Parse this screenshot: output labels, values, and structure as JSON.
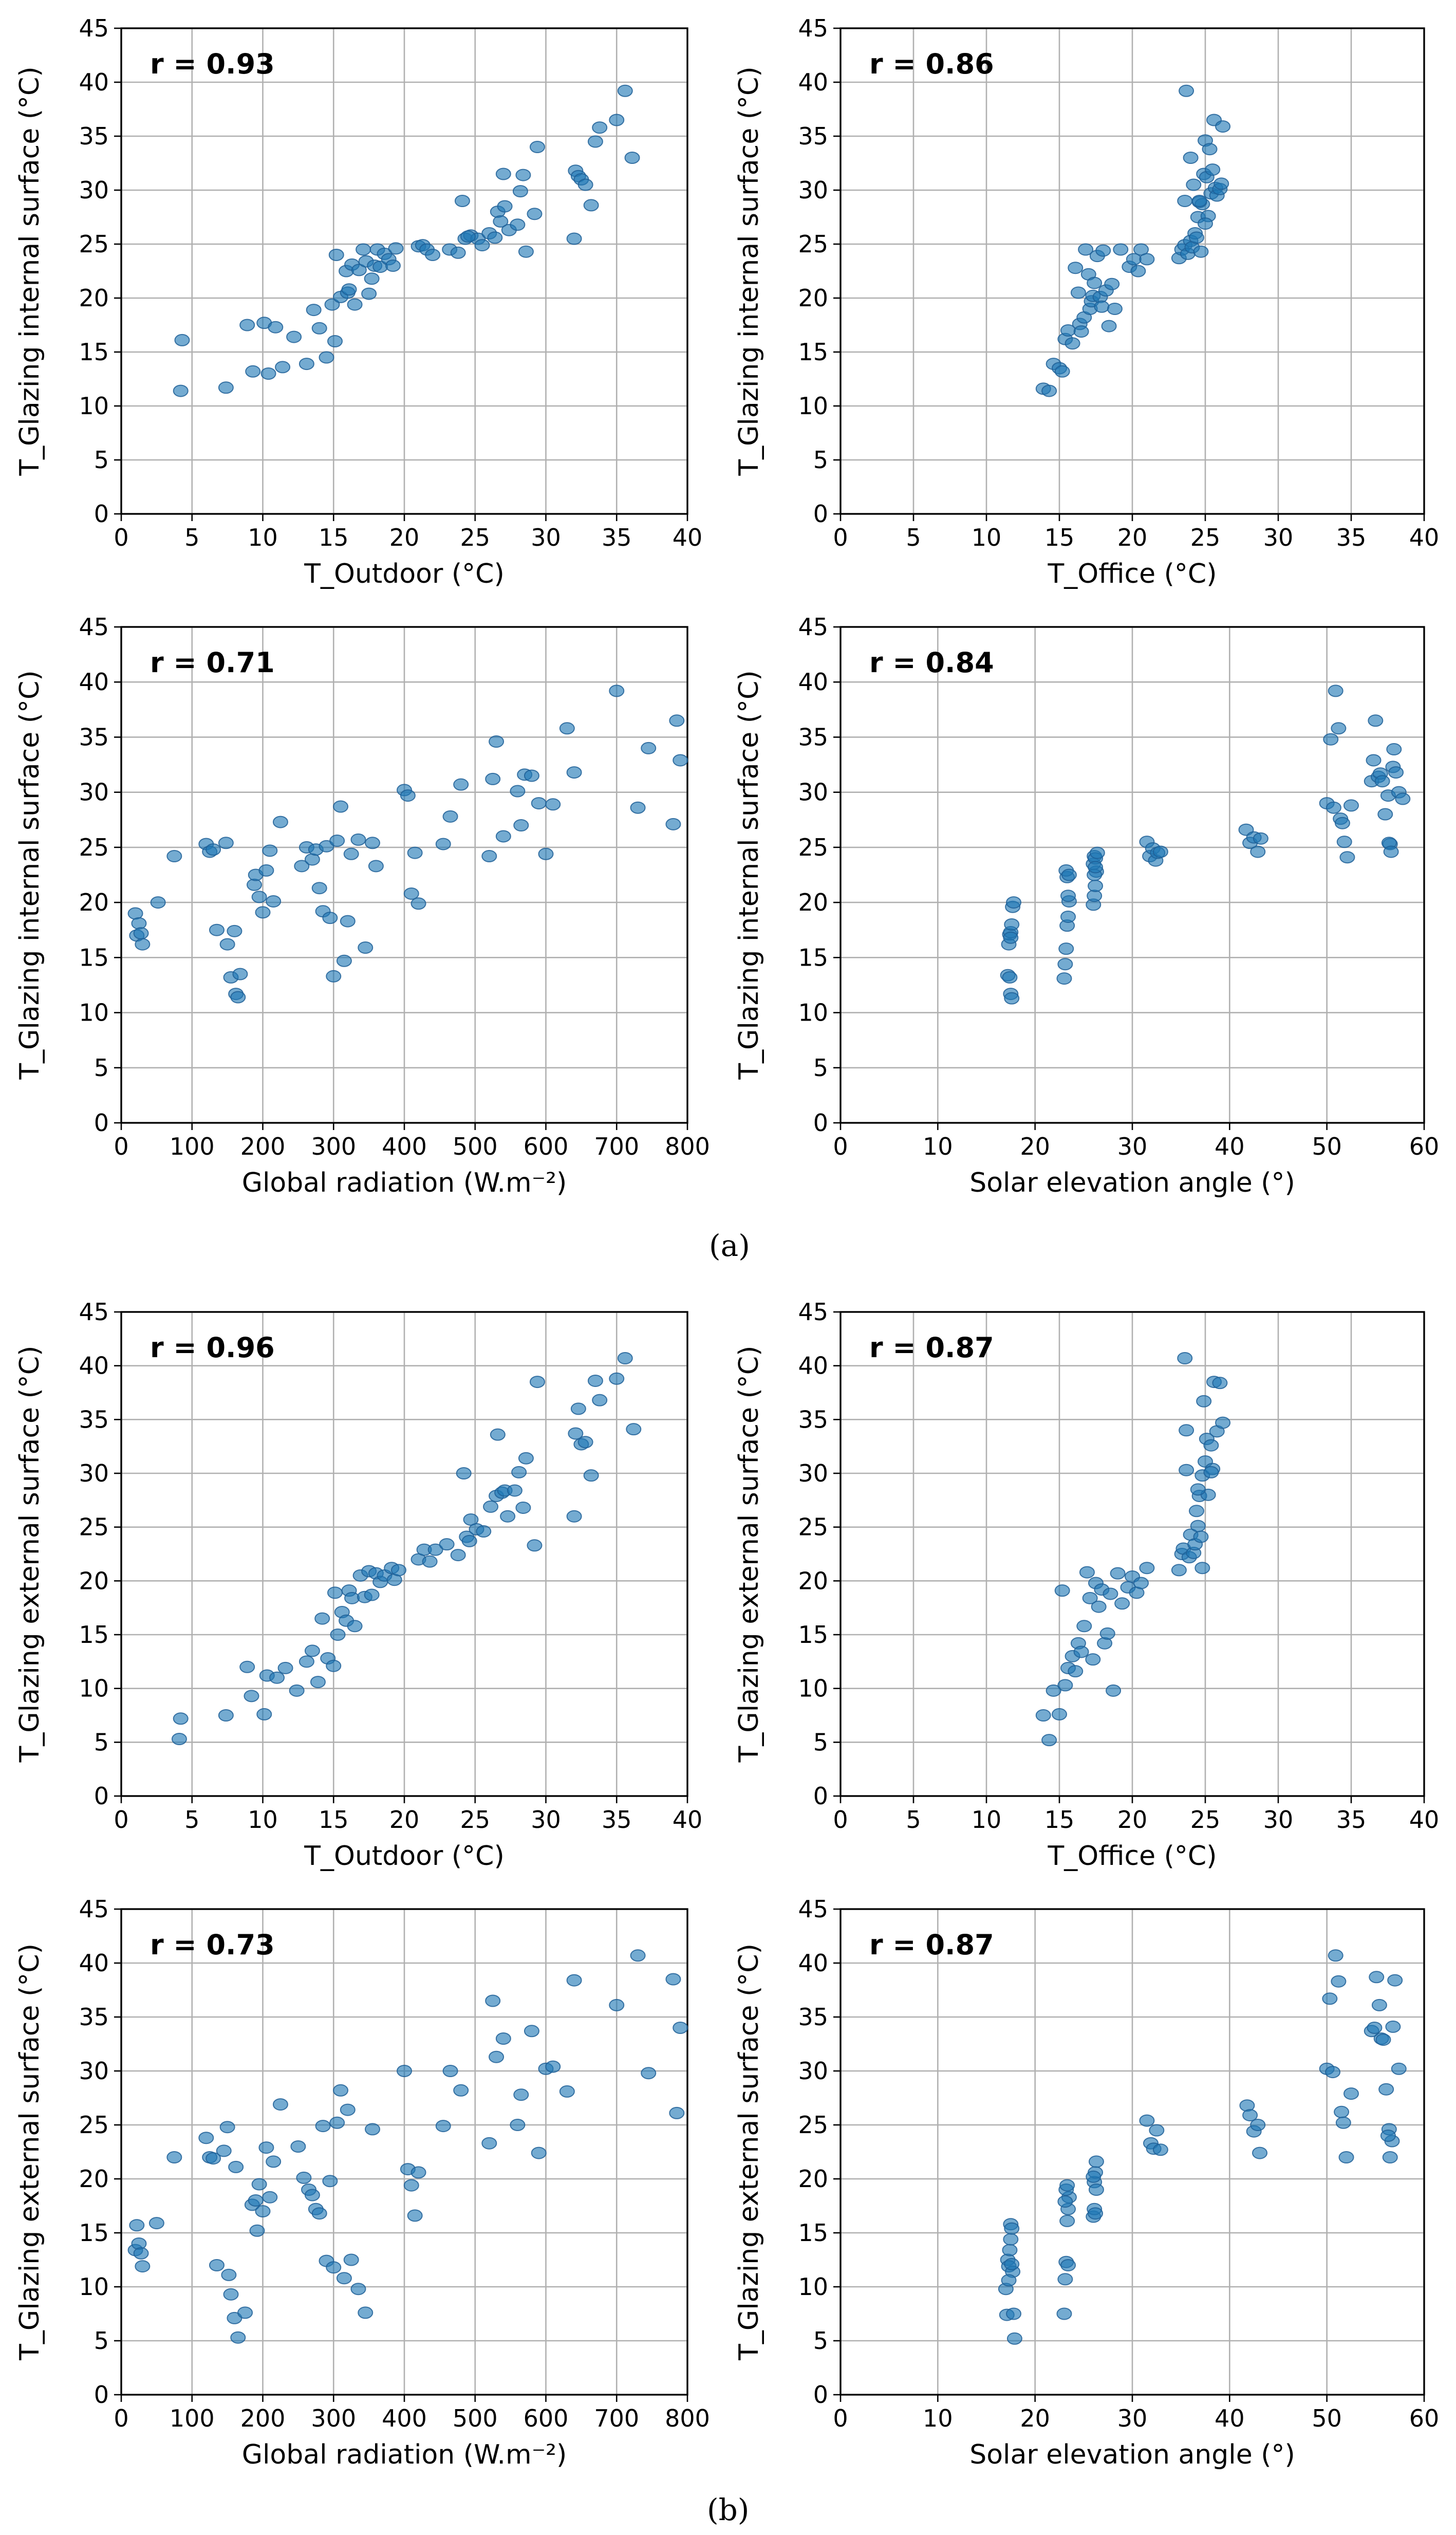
{
  "figure": {
    "panel_labels": [
      "(a)",
      "(b)"
    ]
  },
  "colors": {
    "point": "#1f77b4",
    "grid": "#b0b0b0"
  },
  "chart_data": [
    {
      "type": "scatter",
      "panel": "a",
      "title": "r = 0.93",
      "xlabel": "T_Outdoor (°C)",
      "ylabel": "T_Glazing internal surface (°C)",
      "xlim": [
        0,
        40
      ],
      "ylim": [
        0,
        45
      ],
      "xticks": [
        0,
        5,
        10,
        15,
        20,
        25,
        30,
        35,
        40
      ],
      "yticks": [
        0,
        5,
        10,
        15,
        20,
        25,
        30,
        35,
        40,
        45
      ],
      "x": [
        4.3,
        4.2,
        7.4,
        8.9,
        9.3,
        10.1,
        10.4,
        10.9,
        11.4,
        12.2,
        13.1,
        13.6,
        14.0,
        14.5,
        14.9,
        15.1,
        15.2,
        15.5,
        15.9,
        16.0,
        16.1,
        16.3,
        16.5,
        16.8,
        17.1,
        17.3,
        17.5,
        17.7,
        17.9,
        18.1,
        18.3,
        18.6,
        18.9,
        19.2,
        19.4,
        21.0,
        21.3,
        21.6,
        22.0,
        23.2,
        23.8,
        24.1,
        24.3,
        24.7,
        25.2,
        25.5,
        24.5,
        26.0,
        26.4,
        26.6,
        26.8,
        27.0,
        27.1,
        27.4,
        28.0,
        28.2,
        28.4,
        28.6,
        29.2,
        29.4,
        32.1,
        32.3,
        32.5,
        32.0,
        32.8,
        33.2,
        33.5,
        33.8,
        35.0,
        35.6,
        36.1
      ],
      "y": [
        16.1,
        11.4,
        11.7,
        17.5,
        13.2,
        17.7,
        13.0,
        17.3,
        13.6,
        16.4,
        13.9,
        18.9,
        17.2,
        14.5,
        19.4,
        16.0,
        24.0,
        20.1,
        22.5,
        20.5,
        20.8,
        23.1,
        19.4,
        22.6,
        24.5,
        23.4,
        20.4,
        21.8,
        23.0,
        24.5,
        22.9,
        24.1,
        23.6,
        23.0,
        24.6,
        24.8,
        24.9,
        24.5,
        24.0,
        24.5,
        24.2,
        29.0,
        25.5,
        25.8,
        25.5,
        24.9,
        25.7,
        26.0,
        25.6,
        28.0,
        27.1,
        31.5,
        28.5,
        26.3,
        26.8,
        29.9,
        31.4,
        24.3,
        27.8,
        34.0,
        31.8,
        31.3,
        31.0,
        25.5,
        30.5,
        28.6,
        34.5,
        35.8,
        36.5,
        39.2,
        33.0
      ]
    },
    {
      "type": "scatter",
      "panel": "a",
      "title": "r = 0.86",
      "xlabel": "T_Office (°C)",
      "ylabel": "T_Glazing internal surface (°C)",
      "xlim": [
        0,
        40
      ],
      "ylim": [
        0,
        45
      ],
      "xticks": [
        0,
        5,
        10,
        15,
        20,
        25,
        30,
        35,
        40
      ],
      "yticks": [
        0,
        5,
        10,
        15,
        20,
        25,
        30,
        35,
        40,
        45
      ],
      "x": [
        13.9,
        14.3,
        14.6,
        15.0,
        15.2,
        15.4,
        15.6,
        15.9,
        16.1,
        16.3,
        16.4,
        16.5,
        16.7,
        16.8,
        17.0,
        17.1,
        17.2,
        17.3,
        17.4,
        17.6,
        17.8,
        17.9,
        18.0,
        18.2,
        18.4,
        18.6,
        18.8,
        19.2,
        19.8,
        20.1,
        20.4,
        20.6,
        21.0,
        23.2,
        23.4,
        23.6,
        23.6,
        23.8,
        24.0,
        24.1,
        24.2,
        24.3,
        24.4,
        24.5,
        24.6,
        24.7,
        24.8,
        24.9,
        25.0,
        25.1,
        25.2,
        25.3,
        25.4,
        25.5,
        25.6,
        25.7,
        25.8,
        26.0,
        26.1,
        26.2,
        23.7,
        24.0,
        25.0,
        24.6
      ],
      "y": [
        11.6,
        11.4,
        13.9,
        13.5,
        13.2,
        16.2,
        17.0,
        15.8,
        22.8,
        20.5,
        17.6,
        16.9,
        18.2,
        24.5,
        22.2,
        19.0,
        19.7,
        20.2,
        21.4,
        23.9,
        20.1,
        19.2,
        24.4,
        20.7,
        17.4,
        21.3,
        19.0,
        24.5,
        22.9,
        23.6,
        22.5,
        24.5,
        23.6,
        23.7,
        24.5,
        24.9,
        29.0,
        24.1,
        25.3,
        24.7,
        30.5,
        26.0,
        25.6,
        27.5,
        28.9,
        24.3,
        28.7,
        31.5,
        34.6,
        31.2,
        27.6,
        33.8,
        29.7,
        31.9,
        36.5,
        30.2,
        29.5,
        30.1,
        30.6,
        35.9,
        39.2,
        33.0,
        26.9,
        29.0
      ]
    },
    {
      "type": "scatter",
      "panel": "a",
      "title": "r = 0.71",
      "xlabel": "Global radiation (W.m⁻²)",
      "ylabel": "T_Glazing internal surface (°C)",
      "xlim": [
        0,
        800
      ],
      "ylim": [
        0,
        45
      ],
      "xticks": [
        0,
        100,
        200,
        300,
        400,
        500,
        600,
        700,
        800
      ],
      "yticks": [
        0,
        5,
        10,
        15,
        20,
        25,
        30,
        35,
        40,
        45
      ],
      "x": [
        20,
        22,
        25,
        28,
        30,
        52,
        75,
        120,
        125,
        130,
        135,
        148,
        150,
        155,
        160,
        162,
        165,
        168,
        188,
        190,
        195,
        200,
        205,
        210,
        215,
        225,
        255,
        262,
        270,
        275,
        280,
        285,
        290,
        295,
        300,
        305,
        310,
        315,
        320,
        325,
        335,
        345,
        355,
        360,
        400,
        405,
        410,
        415,
        420,
        455,
        465,
        480,
        520,
        525,
        530,
        540,
        560,
        565,
        570,
        580,
        590,
        600,
        610,
        630,
        640,
        700,
        730,
        745,
        780,
        785,
        790
      ],
      "y": [
        19.0,
        17.0,
        18.1,
        17.2,
        16.2,
        20.0,
        24.2,
        25.3,
        24.6,
        24.8,
        17.5,
        25.4,
        16.2,
        13.2,
        17.4,
        11.7,
        11.4,
        13.5,
        21.6,
        22.5,
        20.5,
        19.1,
        22.9,
        24.7,
        20.1,
        27.3,
        23.3,
        25.0,
        23.9,
        24.8,
        21.3,
        19.2,
        25.1,
        18.6,
        13.3,
        25.6,
        28.7,
        14.7,
        18.3,
        24.4,
        25.7,
        15.9,
        25.4,
        23.3,
        30.2,
        29.7,
        20.8,
        24.5,
        19.9,
        25.3,
        27.8,
        30.7,
        24.2,
        31.2,
        34.6,
        26.0,
        30.1,
        27.0,
        31.6,
        31.5,
        29.0,
        24.4,
        28.9,
        35.8,
        31.8,
        39.2,
        28.6,
        34.0,
        27.1,
        36.5,
        32.9
      ]
    },
    {
      "type": "scatter",
      "panel": "a",
      "title": "r = 0.84",
      "xlabel": "Solar elevation angle (°)",
      "ylabel": "T_Glazing internal surface (°C)",
      "xlim": [
        0,
        60
      ],
      "ylim": [
        0,
        45
      ],
      "xticks": [
        0,
        10,
        20,
        30,
        40,
        50,
        60
      ],
      "yticks": [
        0,
        5,
        10,
        15,
        20,
        25,
        30,
        35,
        40,
        45
      ],
      "x": [
        17.2,
        17.3,
        17.4,
        17.5,
        17.5,
        17.6,
        17.7,
        17.8,
        17.5,
        17.6,
        17.4,
        23.0,
        23.1,
        23.2,
        23.3,
        23.4,
        23.5,
        23.3,
        23.2,
        23.4,
        23.5,
        26.0,
        26.1,
        26.2,
        26.3,
        26.0,
        26.1,
        26.2,
        26.4,
        26.1,
        26.2,
        31.5,
        31.8,
        32.1,
        32.4,
        32.6,
        32.9,
        41.7,
        42.1,
        42.5,
        42.9,
        43.2,
        50.0,
        50.4,
        50.7,
        50.9,
        51.2,
        51.4,
        51.6,
        51.8,
        52.1,
        52.5,
        54.6,
        54.8,
        55.0,
        55.3,
        55.5,
        55.7,
        56.0,
        56.3,
        56.5,
        56.8,
        57.1,
        57.4,
        57.8,
        56.4,
        56.6,
        56.9
      ],
      "y": [
        13.4,
        16.2,
        17.1,
        17.3,
        16.8,
        18.0,
        19.6,
        20.0,
        11.7,
        11.3,
        13.2,
        13.1,
        14.4,
        15.8,
        17.9,
        18.7,
        20.1,
        22.3,
        22.9,
        20.6,
        22.5,
        19.8,
        20.6,
        21.5,
        22.8,
        23.5,
        24.2,
        24.0,
        24.5,
        22.5,
        23.2,
        25.5,
        24.2,
        24.9,
        23.8,
        24.5,
        24.6,
        26.6,
        25.4,
        25.9,
        24.6,
        25.8,
        29.0,
        34.8,
        28.6,
        39.2,
        35.8,
        27.6,
        27.2,
        25.5,
        24.1,
        28.8,
        31.0,
        32.9,
        36.5,
        31.4,
        31.7,
        31.0,
        28.0,
        29.7,
        25.3,
        32.3,
        31.8,
        30.0,
        29.4,
        25.4,
        24.6,
        33.9
      ]
    },
    {
      "type": "scatter",
      "panel": "b",
      "title": "r = 0.96",
      "xlabel": "T_Outdoor (°C)",
      "ylabel": "T_Glazing external surface (°C)",
      "xlim": [
        0,
        40
      ],
      "ylim": [
        0,
        45
      ],
      "xticks": [
        0,
        5,
        10,
        15,
        20,
        25,
        30,
        35,
        40
      ],
      "yticks": [
        0,
        5,
        10,
        15,
        20,
        25,
        30,
        35,
        40,
        45
      ],
      "x": [
        4.2,
        4.1,
        7.4,
        8.9,
        9.2,
        10.1,
        10.3,
        11.0,
        11.6,
        12.4,
        13.1,
        13.5,
        13.9,
        14.2,
        14.6,
        15.0,
        15.1,
        15.3,
        15.6,
        15.9,
        16.1,
        16.3,
        16.5,
        16.9,
        17.2,
        17.5,
        17.7,
        18.0,
        18.3,
        18.6,
        19.1,
        19.3,
        19.6,
        21.0,
        21.4,
        21.8,
        22.2,
        23.0,
        23.8,
        24.2,
        24.4,
        24.7,
        25.1,
        25.6,
        24.6,
        26.1,
        26.5,
        26.6,
        26.9,
        27.1,
        27.3,
        27.8,
        28.1,
        28.4,
        28.6,
        29.2,
        29.4,
        32.1,
        32.3,
        32.5,
        32.0,
        32.8,
        33.2,
        33.5,
        33.8,
        35.0,
        35.6,
        36.2
      ],
      "y": [
        7.2,
        5.3,
        7.5,
        12.0,
        9.3,
        7.6,
        11.2,
        11.0,
        11.9,
        9.8,
        12.5,
        13.5,
        10.6,
        16.5,
        12.8,
        12.1,
        18.9,
        15.0,
        17.1,
        16.3,
        19.1,
        18.4,
        15.8,
        20.5,
        18.5,
        20.9,
        18.7,
        20.7,
        19.9,
        20.5,
        21.2,
        20.1,
        21.0,
        22.0,
        22.9,
        21.8,
        22.9,
        23.4,
        22.4,
        30.0,
        24.1,
        25.7,
        24.8,
        24.6,
        23.7,
        26.9,
        27.9,
        33.6,
        28.2,
        28.4,
        26.0,
        28.4,
        30.1,
        26.8,
        31.4,
        23.3,
        38.5,
        33.7,
        36.0,
        32.7,
        26.0,
        32.9,
        29.8,
        38.6,
        36.8,
        38.8,
        40.7,
        34.1
      ]
    },
    {
      "type": "scatter",
      "panel": "b",
      "title": "r = 0.87",
      "xlabel": "T_Office (°C)",
      "ylabel": "T_Glazing external surface (°C)",
      "xlim": [
        0,
        40
      ],
      "ylim": [
        0,
        45
      ],
      "xticks": [
        0,
        5,
        10,
        15,
        20,
        25,
        30,
        35,
        40
      ],
      "yticks": [
        0,
        5,
        10,
        15,
        20,
        25,
        30,
        35,
        40,
        45
      ],
      "x": [
        13.9,
        14.3,
        14.6,
        15.0,
        15.2,
        15.4,
        15.6,
        15.9,
        16.1,
        16.3,
        16.5,
        16.7,
        16.9,
        17.1,
        17.3,
        17.5,
        17.7,
        17.9,
        18.1,
        18.3,
        18.5,
        18.7,
        19.0,
        19.3,
        19.7,
        20.0,
        20.3,
        20.6,
        21.0,
        23.2,
        23.4,
        23.5,
        23.7,
        23.9,
        24.0,
        24.2,
        24.3,
        24.4,
        24.5,
        24.6,
        24.7,
        24.8,
        24.9,
        25.0,
        25.1,
        25.2,
        25.4,
        25.5,
        25.6,
        25.8,
        26.0,
        26.2,
        23.6,
        23.7,
        24.5,
        25.4,
        24.8
      ],
      "y": [
        7.5,
        5.2,
        9.8,
        7.6,
        19.1,
        10.3,
        11.9,
        13.0,
        11.6,
        14.2,
        13.4,
        15.8,
        20.8,
        18.4,
        12.7,
        19.8,
        17.6,
        19.2,
        14.2,
        15.1,
        18.8,
        9.8,
        20.7,
        17.9,
        19.4,
        20.4,
        18.9,
        19.8,
        21.2,
        21.0,
        22.5,
        23.0,
        30.3,
        22.2,
        24.3,
        22.6,
        23.4,
        26.5,
        25.1,
        27.9,
        24.1,
        29.8,
        36.7,
        31.1,
        33.2,
        28.0,
        32.6,
        30.4,
        38.5,
        33.9,
        38.4,
        34.7,
        40.7,
        34.0,
        28.5,
        30.1,
        21.2
      ]
    },
    {
      "type": "scatter",
      "panel": "b",
      "title": "r = 0.73",
      "xlabel": "Global radiation (W.m⁻²)",
      "ylabel": "T_Glazing external surface (°C)",
      "xlim": [
        0,
        800
      ],
      "ylim": [
        0,
        45
      ],
      "xticks": [
        0,
        100,
        200,
        300,
        400,
        500,
        600,
        700,
        800
      ],
      "yticks": [
        0,
        5,
        10,
        15,
        20,
        25,
        30,
        35,
        40,
        45
      ],
      "x": [
        20,
        22,
        25,
        28,
        30,
        50,
        75,
        120,
        125,
        130,
        135,
        145,
        150,
        152,
        155,
        160,
        162,
        165,
        175,
        185,
        190,
        192,
        195,
        200,
        205,
        210,
        215,
        225,
        250,
        258,
        265,
        270,
        275,
        280,
        285,
        290,
        295,
        300,
        305,
        310,
        315,
        320,
        325,
        335,
        345,
        355,
        400,
        405,
        410,
        415,
        420,
        455,
        465,
        480,
        520,
        525,
        530,
        540,
        560,
        565,
        580,
        590,
        600,
        610,
        630,
        640,
        700,
        730,
        745,
        780,
        785,
        790
      ],
      "y": [
        13.4,
        15.7,
        14.0,
        13.1,
        11.9,
        15.9,
        22.0,
        23.8,
        22.0,
        21.9,
        12.0,
        22.6,
        24.8,
        11.1,
        9.3,
        7.1,
        21.1,
        5.3,
        7.6,
        17.6,
        18.0,
        15.2,
        19.5,
        17.0,
        22.9,
        18.3,
        21.6,
        26.9,
        23.0,
        20.1,
        19.0,
        18.5,
        17.2,
        16.8,
        24.9,
        12.4,
        19.8,
        11.8,
        25.2,
        28.2,
        10.8,
        26.4,
        12.5,
        9.8,
        7.6,
        24.6,
        30.0,
        20.9,
        19.4,
        16.6,
        20.6,
        24.9,
        30.0,
        28.2,
        23.3,
        36.5,
        31.3,
        33.0,
        25.0,
        27.8,
        33.7,
        22.4,
        30.2,
        30.4,
        28.1,
        38.4,
        36.1,
        40.7,
        29.8,
        38.5,
        26.1,
        34.0
      ]
    },
    {
      "type": "scatter",
      "panel": "b",
      "title": "r = 0.87",
      "xlabel": "Solar elevation angle (°)",
      "ylabel": "T_Glazing external surface (°C)",
      "xlim": [
        0,
        60
      ],
      "ylim": [
        0,
        45
      ],
      "xticks": [
        0,
        10,
        20,
        30,
        40,
        50,
        60
      ],
      "yticks": [
        0,
        5,
        10,
        15,
        20,
        25,
        30,
        35,
        40,
        45
      ],
      "x": [
        17.0,
        17.1,
        17.2,
        17.3,
        17.4,
        17.5,
        17.5,
        17.6,
        17.7,
        17.8,
        17.9,
        17.3,
        17.6,
        23.0,
        23.1,
        23.2,
        23.3,
        23.4,
        23.5,
        23.2,
        23.3,
        23.4,
        23.1,
        26.0,
        26.1,
        26.2,
        26.3,
        26.1,
        26.2,
        26.3,
        26.0,
        31.5,
        31.9,
        32.2,
        32.5,
        32.9,
        41.8,
        42.1,
        42.5,
        42.9,
        43.1,
        50.0,
        50.3,
        50.6,
        50.9,
        51.2,
        51.5,
        51.7,
        52.0,
        52.5,
        54.6,
        54.9,
        55.1,
        55.4,
        55.6,
        55.8,
        56.1,
        56.4,
        56.7,
        57.0,
        57.4,
        56.3,
        56.5,
        56.8
      ],
      "y": [
        9.8,
        7.4,
        12.5,
        11.9,
        13.4,
        14.4,
        15.8,
        15.4,
        11.4,
        7.5,
        5.2,
        10.6,
        12.1,
        7.5,
        10.7,
        12.3,
        16.1,
        17.2,
        18.3,
        19.0,
        19.4,
        12.0,
        17.9,
        16.5,
        19.7,
        20.6,
        21.6,
        17.2,
        16.8,
        19.0,
        20.2,
        25.4,
        23.3,
        22.8,
        24.5,
        22.7,
        26.8,
        25.9,
        24.4,
        25.0,
        22.4,
        30.2,
        36.7,
        29.9,
        40.7,
        38.3,
        26.2,
        25.2,
        22.0,
        27.9,
        33.7,
        34.0,
        38.7,
        36.1,
        33.0,
        32.9,
        28.3,
        24.6,
        23.5,
        38.4,
        30.2,
        24.0,
        22.0,
        34.1
      ]
    }
  ]
}
